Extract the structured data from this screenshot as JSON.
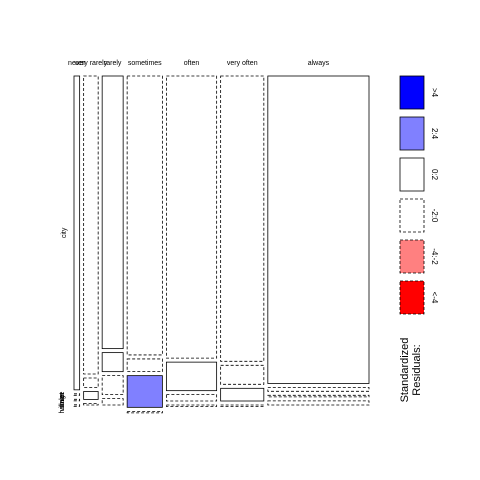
{
  "chart_data": {
    "type": "mosaic",
    "title": "",
    "columns": [
      "never",
      "very rarely",
      "rarely",
      "sometimes",
      "often",
      "very often",
      "always"
    ],
    "column_widths": [
      0.0083,
      0.0214,
      0.0309,
      0.0519,
      0.074,
      0.0636,
      0.149
    ],
    "rows_top_to_bottom": [
      "city",
      "town",
      "village",
      "hamlet"
    ],
    "row_shares_by_column": [
      [
        0.99,
        0.004,
        0.003,
        0.003
      ],
      [
        0.94,
        0.03,
        0.025,
        0.005
      ],
      [
        0.86,
        0.06,
        0.06,
        0.02
      ],
      [
        0.88,
        0.04,
        0.1,
        0.0
      ],
      [
        0.89,
        0.09,
        0.02,
        0.0
      ],
      [
        0.9,
        0.06,
        0.04,
        0.0
      ],
      [
        0.97,
        0.012,
        0.005,
        0.013
      ]
    ],
    "residual_class_by_column": [
      [
        "solid",
        "dashed",
        "dashed",
        "dashed"
      ],
      [
        "dashed",
        "dashed",
        "solid",
        "dashed"
      ],
      [
        "solid",
        "solid",
        "dashed",
        "dashed"
      ],
      [
        "dashed",
        "dashed",
        "positive_2_4",
        "dashed"
      ],
      [
        "dashed",
        "solid",
        "dashed",
        "dashed"
      ],
      [
        "dashed",
        "dashed",
        "solid",
        "dashed"
      ],
      [
        "solid",
        "dashed",
        "dashed",
        "dashed"
      ]
    ],
    "row_labels_shown": [
      "city",
      "town",
      "village",
      "hamlet"
    ],
    "legend": {
      "title": "Standardized Residuals:",
      "entries": [
        {
          "label": ">4",
          "fill": "#0000ff",
          "border": "solid"
        },
        {
          "label": "2:4",
          "fill": "#8080ff",
          "border": "solid"
        },
        {
          "label": "0:2",
          "fill": "#ffffff",
          "border": "solid"
        },
        {
          "label": "-2:0",
          "fill": "#ffffff",
          "border": "dashed"
        },
        {
          "label": "-4:-2",
          "fill": "#ff8080",
          "border": "dashed"
        },
        {
          "label": "<-4",
          "fill": "#ff0000",
          "border": "dashed"
        }
      ],
      "placement": "right"
    },
    "colors": {
      "strong_positive": "#0000ff",
      "positive": "#8080ff",
      "negative": "#ff8080",
      "strong_negative": "#ff0000",
      "stroke": "#000000"
    }
  }
}
